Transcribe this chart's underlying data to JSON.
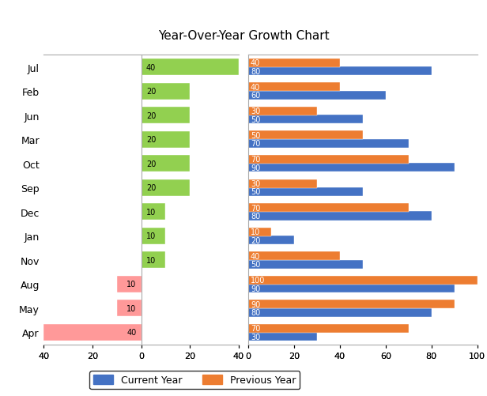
{
  "months": [
    "Jul",
    "Feb",
    "Jun",
    "Mar",
    "Oct",
    "Sep",
    "Dec",
    "Jan",
    "Nov",
    "Aug",
    "May",
    "Apr"
  ],
  "growth": [
    40,
    20,
    20,
    20,
    20,
    20,
    10,
    10,
    10,
    -10,
    -10,
    -40
  ],
  "current_year": [
    80,
    60,
    50,
    70,
    90,
    50,
    80,
    20,
    50,
    90,
    80,
    30
  ],
  "previous_year": [
    40,
    40,
    30,
    50,
    70,
    30,
    70,
    10,
    40,
    100,
    90,
    70
  ],
  "title": "Year-Over-Year Growth Chart",
  "color_positive": "#92D050",
  "color_negative": "#FF9999",
  "color_current": "#4472C4",
  "color_previous": "#ED7D31",
  "legend_current": "Current Year",
  "legend_previous": "Previous Year"
}
